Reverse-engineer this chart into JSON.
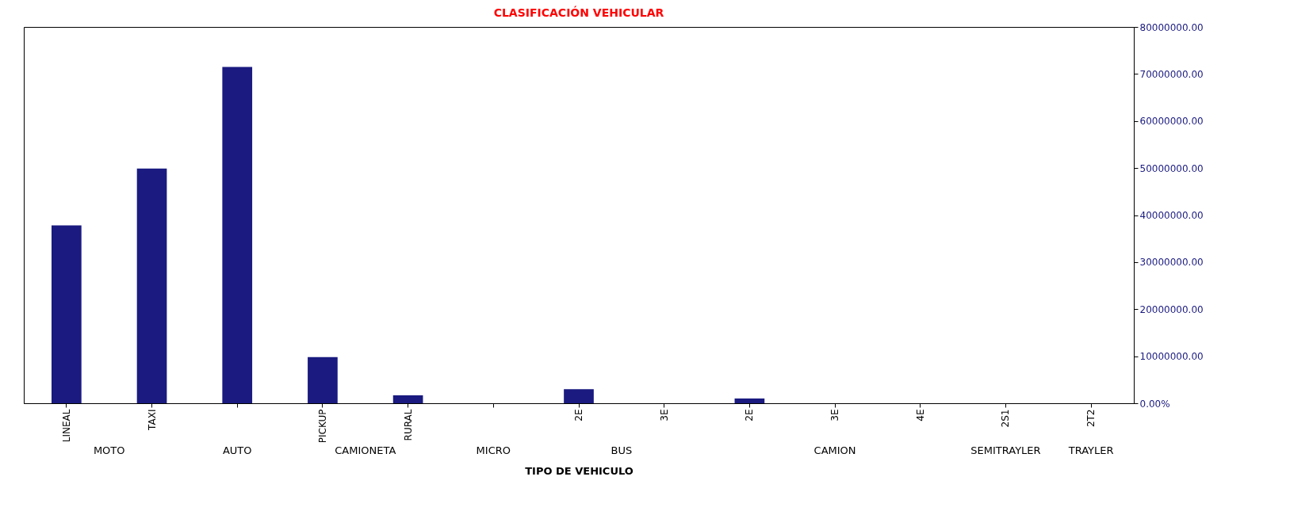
{
  "chart_data": {
    "type": "bar",
    "title": "CLASIFICACIÓN VEHICULAR",
    "xlabel": "TIPO DE VEHICULO",
    "categories": [
      "LINEAL",
      "TAXI",
      null,
      "PICKUP",
      "RURAL",
      null,
      "2E",
      "3E",
      "2E",
      "3E",
      "4E",
      "2S1",
      "2T2"
    ],
    "series": [
      {
        "color": "#1a1a80",
        "axis": "y2",
        "values": [
          37800000,
          49900000,
          71500000,
          9800000,
          1700000,
          0,
          3000000,
          0,
          1000000,
          0,
          0,
          0,
          0
        ]
      }
    ],
    "y2lim": [
      0,
      80000000
    ],
    "y2ticks": [
      {
        "value": 0,
        "label": "0.00%"
      },
      {
        "value": 10000000,
        "label": "10000000.00"
      },
      {
        "value": 20000000,
        "label": "20000000.00"
      },
      {
        "value": 30000000,
        "label": "30000000.00"
      },
      {
        "value": 40000000,
        "label": "40000000.00"
      },
      {
        "value": 50000000,
        "label": "50000000.00"
      },
      {
        "value": 60000000,
        "label": "60000000.00"
      },
      {
        "value": 70000000,
        "label": "70000000.00"
      },
      {
        "value": 80000000,
        "label": "80000000.00"
      }
    ],
    "annotations": [
      "MOTO",
      "AUTO",
      "CAMIONETA",
      "MICRO",
      "BUS",
      "CAMION",
      "SEMITRAYLER",
      "TRAYLER"
    ],
    "grid": false
  }
}
